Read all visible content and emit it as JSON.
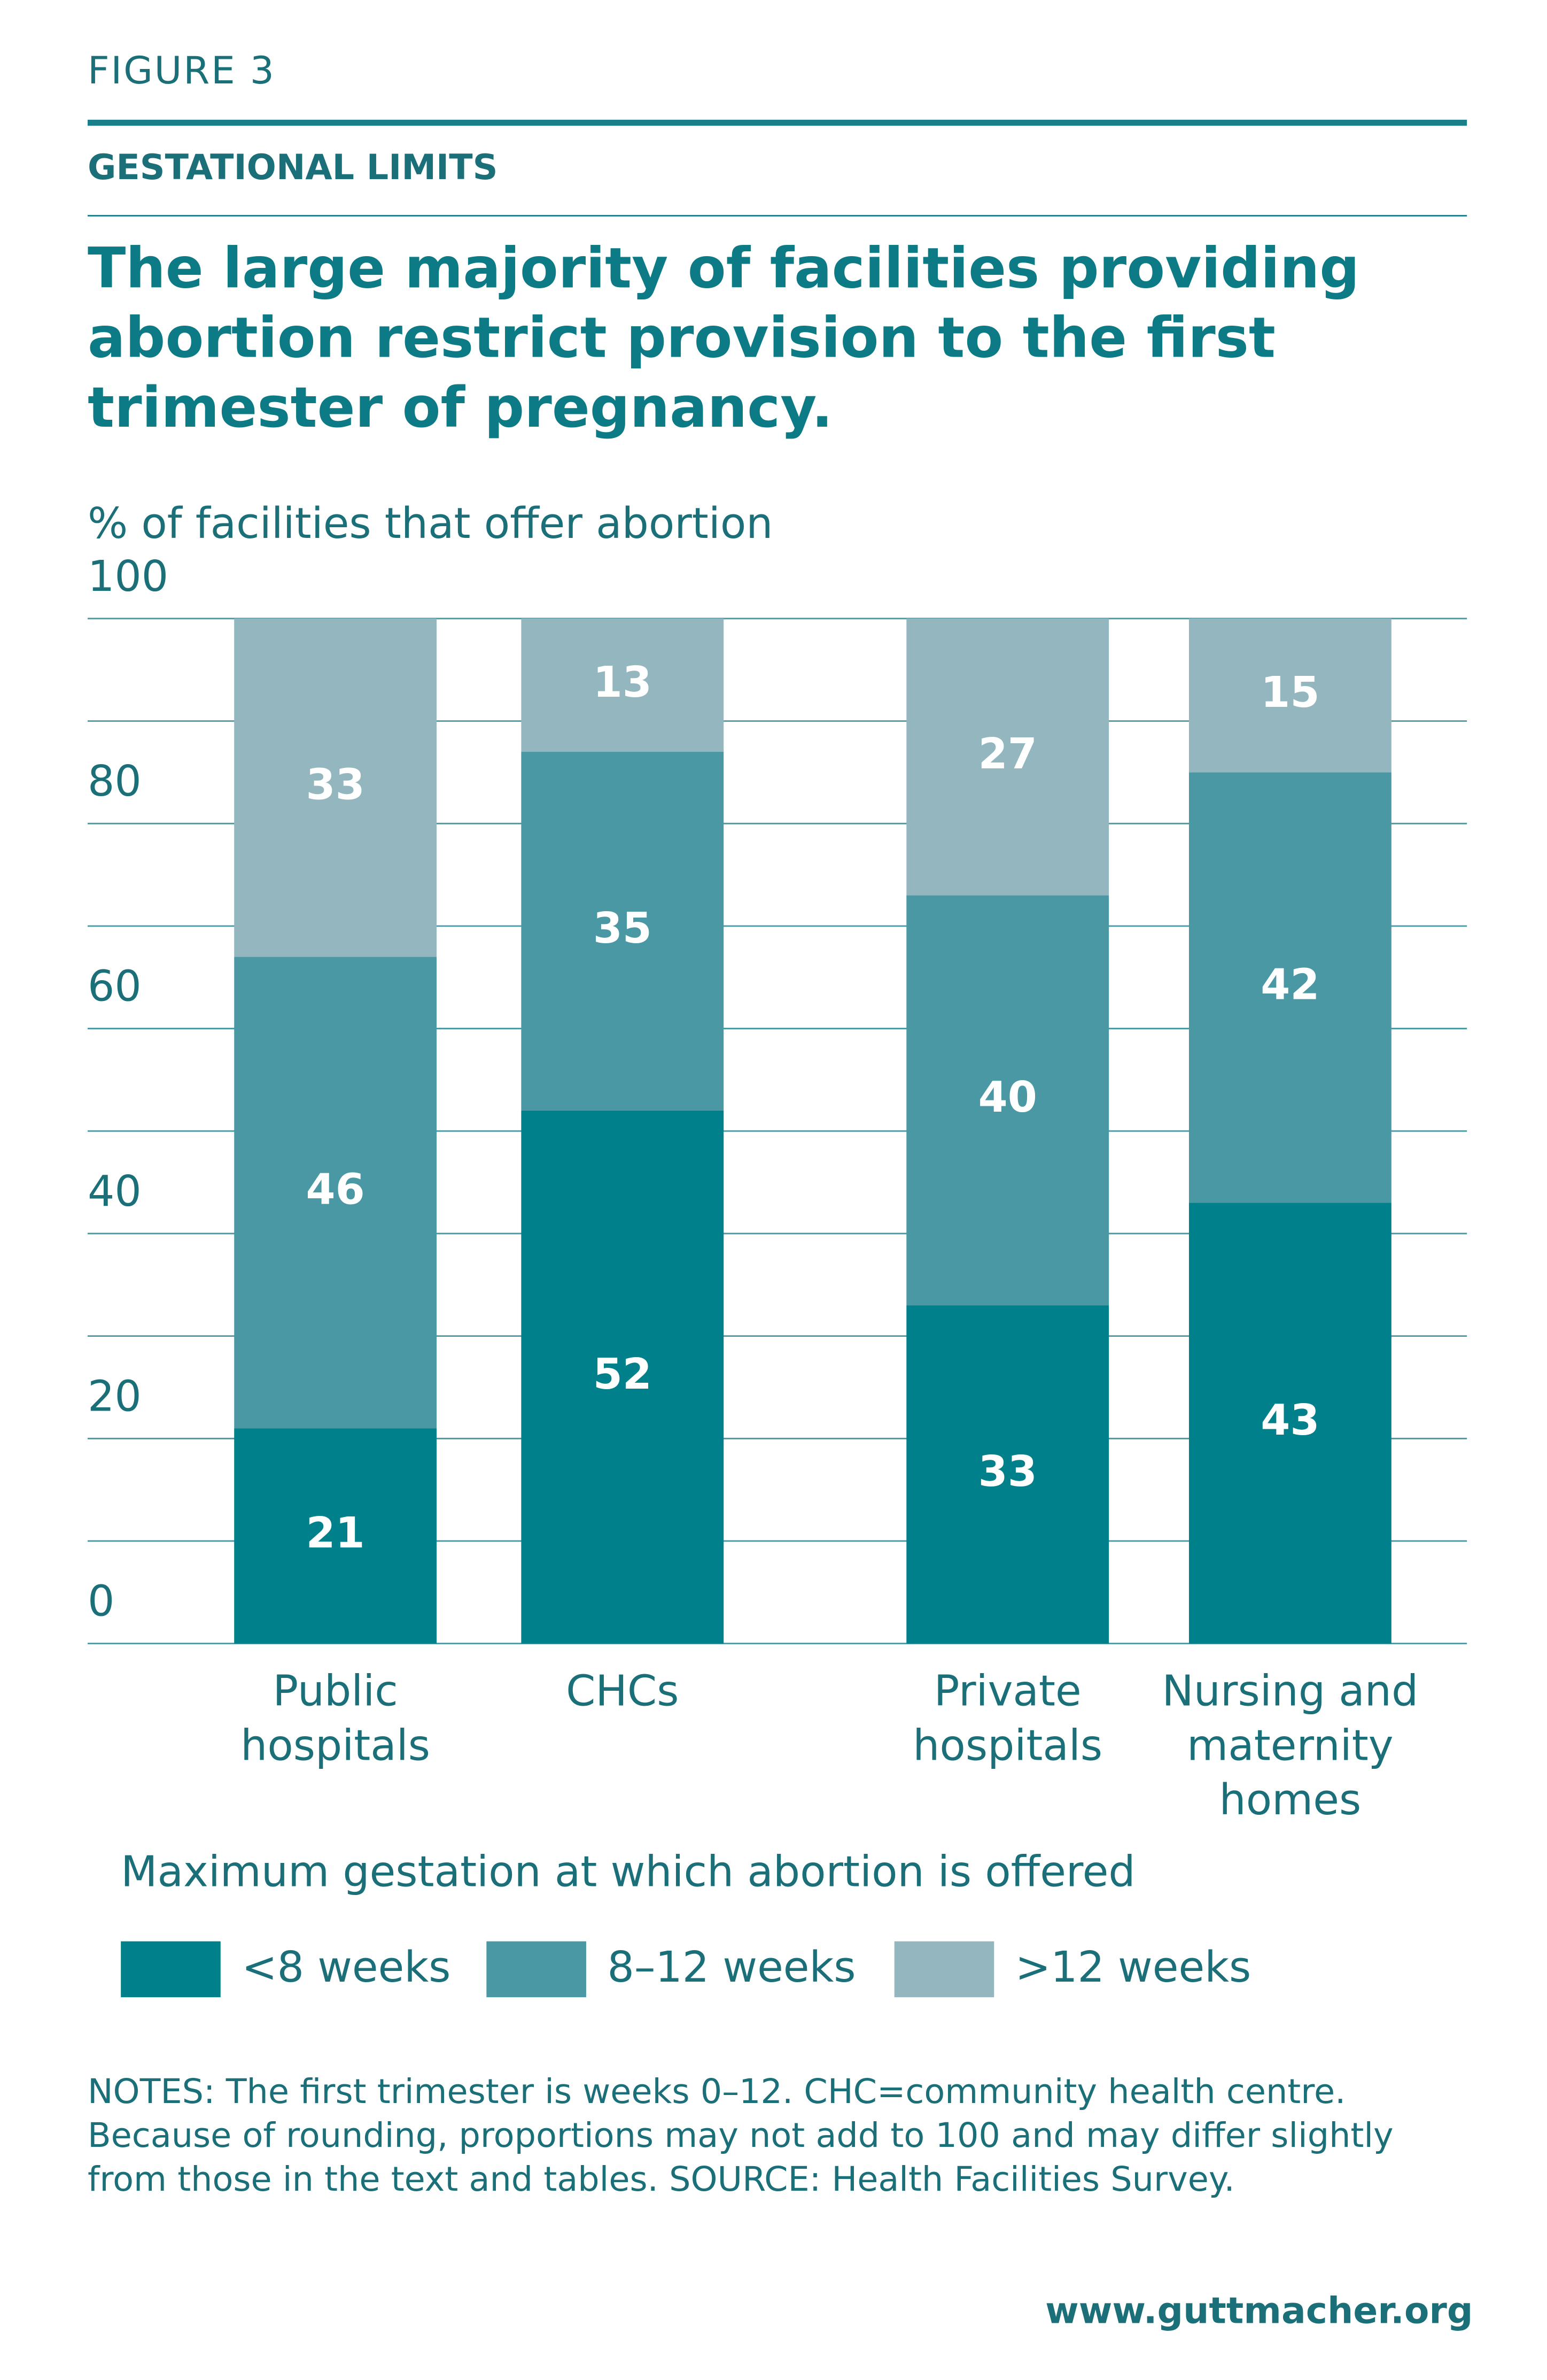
{
  "figure_label": "FIGURE 3",
  "section": "GESTATIONAL LIMITS",
  "chart_data": {
    "type": "stacked_bar",
    "title": "The large majority of facilities providing abortion restrict provision to the first trimester of pregnancy.",
    "ylabel": "% of facilities that offer abortion",
    "categories": [
      "Public hospitals",
      "CHCs",
      "Private hospitals",
      "Nursing and maternity homes"
    ],
    "series": [
      {
        "name": "<8 weeks",
        "color": "#00808a",
        "values": [
          21,
          52,
          33,
          43
        ]
      },
      {
        "name": "8–12 weeks",
        "color": "#4a98a4",
        "values": [
          46,
          35,
          40,
          42
        ]
      },
      {
        "name": ">12 weeks",
        "color": "#94b7bf",
        "values": [
          33,
          13,
          27,
          15
        ]
      }
    ],
    "ylim": [
      0,
      100
    ],
    "yticks": [
      0,
      20,
      40,
      60,
      80,
      100
    ],
    "yticks_minor": [
      10,
      30,
      50,
      70,
      90
    ],
    "grid": true,
    "legend_title": "Maximum gestation at which abortion is offered",
    "legend_position": "bottom"
  },
  "notes": "NOTES: The first trimester is weeks 0–12. CHC=community health centre. Because of rounding, proportions may not add to 100 and may differ slightly from those in the text and tables. SOURCE: Health Facilities Survey.",
  "url": "www.guttmacher.org"
}
